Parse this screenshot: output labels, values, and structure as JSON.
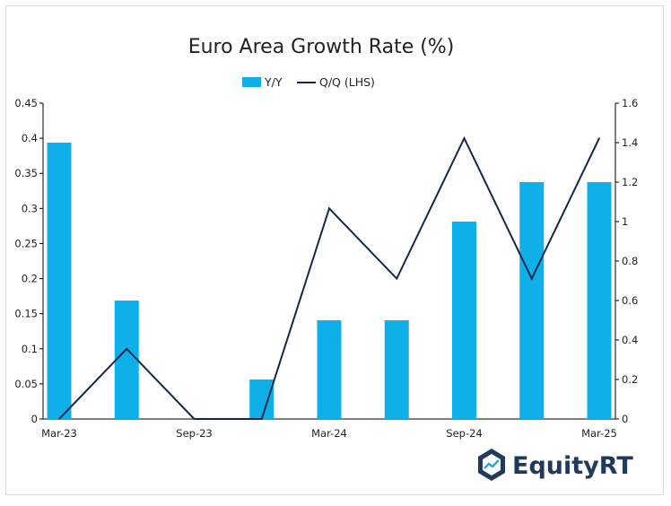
{
  "chart_data": {
    "type": "bar",
    "title": "Euro Area Growth Rate (%)",
    "x_tick_labels": [
      "Mar-23",
      "Sep-23",
      "Mar-24",
      "Sep-24",
      "Mar-25"
    ],
    "categories": [
      "Mar-23",
      "Jun-23",
      "Sep-23",
      "Dec-23",
      "Mar-24",
      "Jun-24",
      "Sep-24",
      "Dec-24",
      "Mar-25"
    ],
    "series": [
      {
        "name": "Y/Y",
        "type": "bar",
        "axis": "right",
        "color": "#0fb0ea",
        "values": [
          1.4,
          0.6,
          0.0,
          0.2,
          0.5,
          0.5,
          1.0,
          1.2,
          1.2
        ]
      },
      {
        "name": "Q/Q (LHS)",
        "type": "line",
        "axis": "left",
        "color": "#14284b",
        "values": [
          0.0,
          0.1,
          0.0,
          0.0,
          0.3,
          0.2,
          0.4,
          0.2,
          0.4
        ]
      }
    ],
    "y_left": {
      "min": 0,
      "max": 0.45,
      "ticks": [
        "0",
        "0.05",
        "0.1",
        "0.15",
        "0.2",
        "0.25",
        "0.3",
        "0.35",
        "0.4",
        "0.45"
      ]
    },
    "y_right": {
      "min": 0,
      "max": 1.6,
      "ticks": [
        "0",
        "0.2",
        "0.4",
        "0.6",
        "0.8",
        "1",
        "1.2",
        "1.4",
        "1.6"
      ]
    },
    "grid": false,
    "legend_position": "top-center"
  },
  "brand": {
    "name": "EquityRT"
  }
}
